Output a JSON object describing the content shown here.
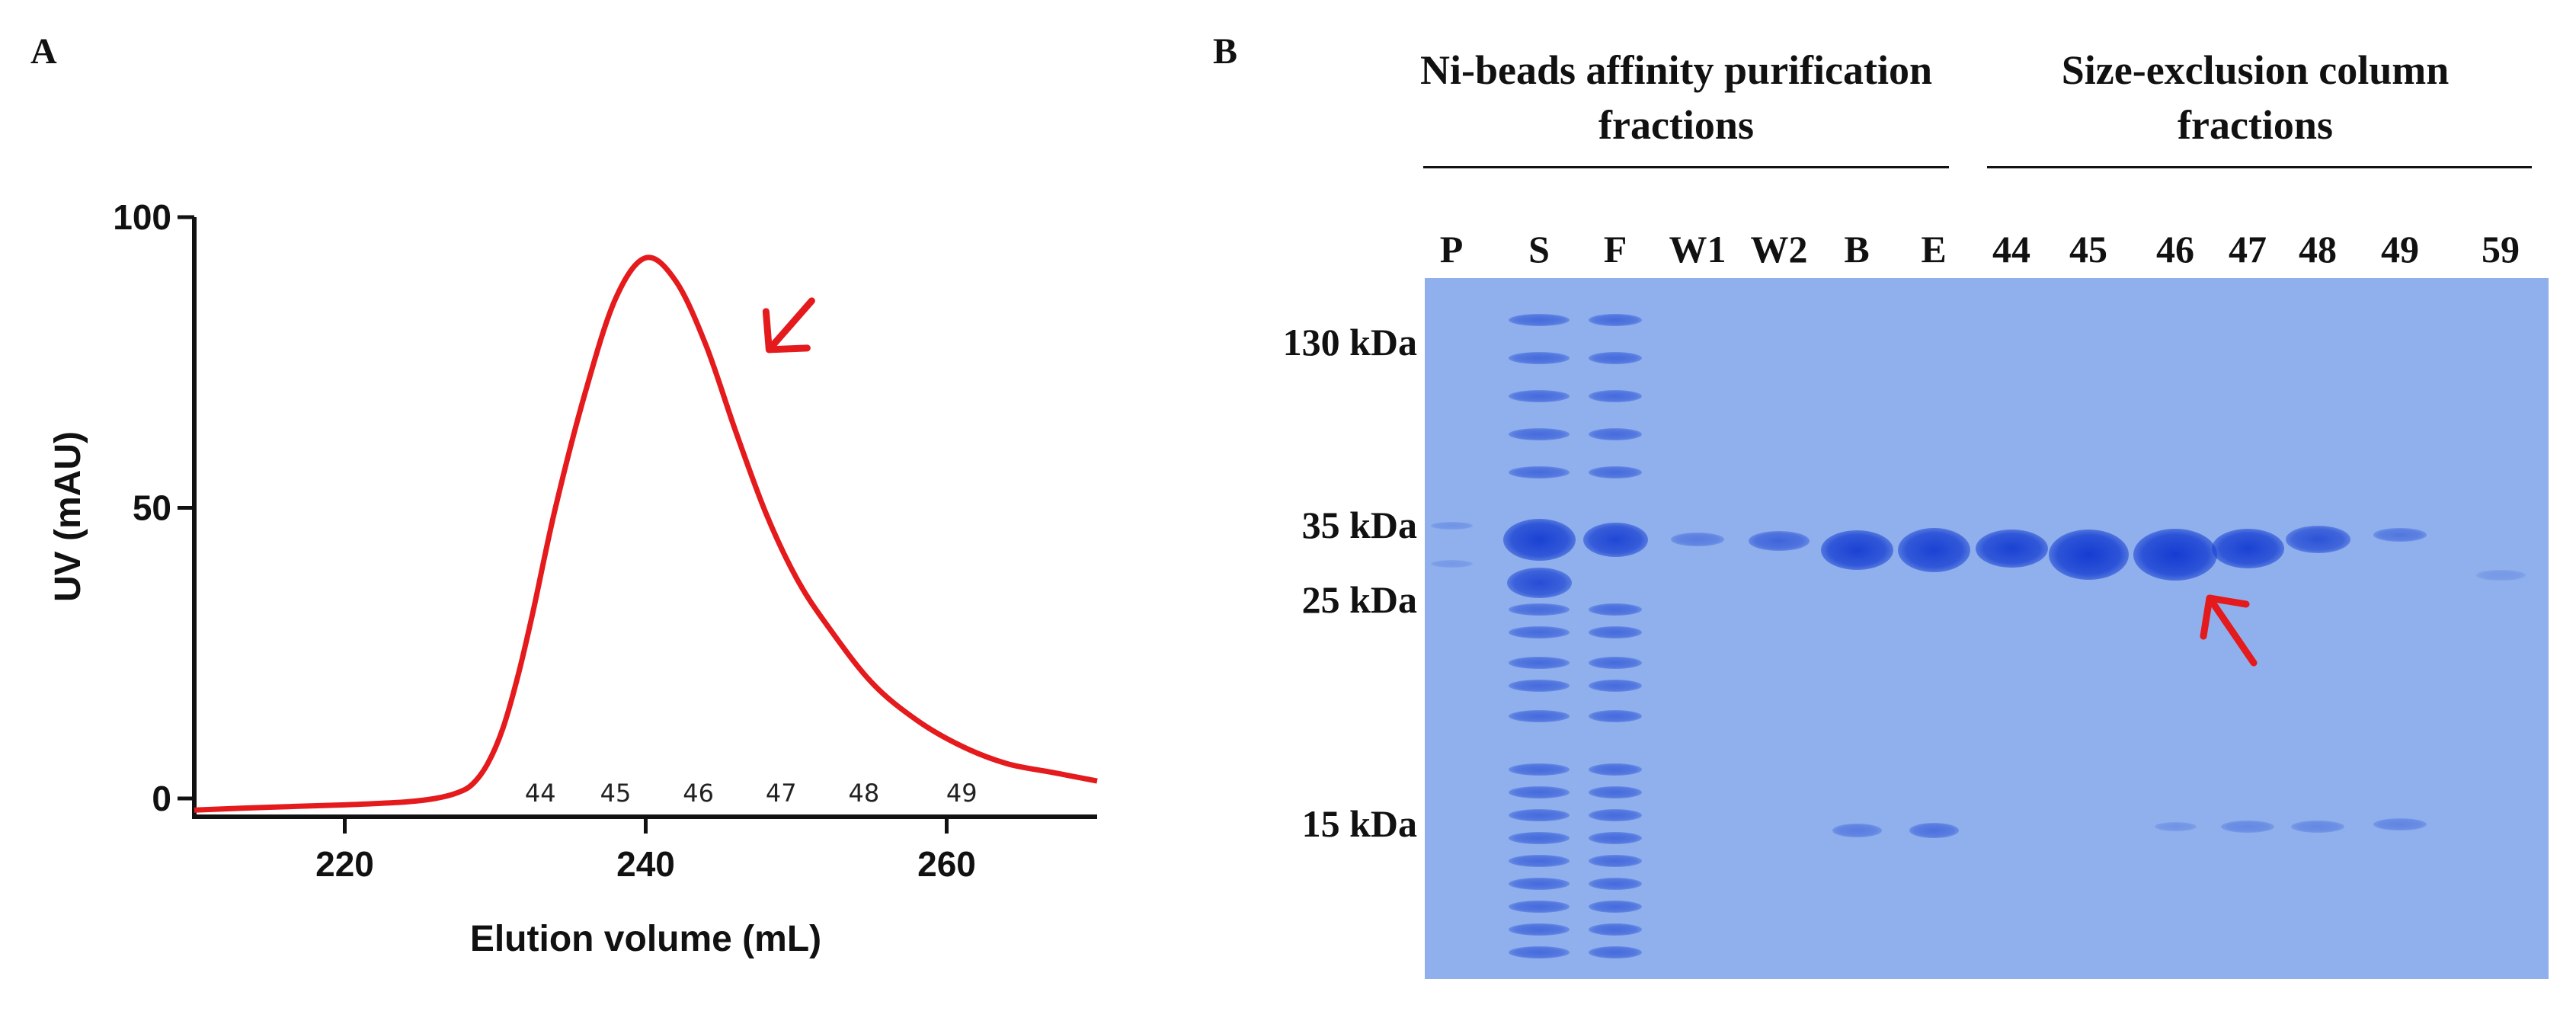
{
  "panel_a": {
    "letter": "A",
    "chart_data": {
      "type": "line",
      "xlabel": "Elution volume (mL)",
      "ylabel": "UV (mAU)",
      "xlim": [
        210,
        270
      ],
      "ylim": [
        0,
        100
      ],
      "x_ticks": [
        "220",
        "240",
        "260"
      ],
      "y_ticks": [
        "0",
        "50",
        "100"
      ],
      "series": [
        {
          "color": "#e41a1c",
          "x": [
            210,
            215,
            220,
            224,
            226,
            227.5,
            228.5,
            229.5,
            230.5,
            231.5,
            232.5,
            234,
            236,
            238,
            240,
            242,
            244,
            246,
            248,
            250,
            252,
            255,
            258,
            261,
            264,
            267,
            270
          ],
          "y": [
            -2,
            -1.5,
            -1.1,
            -0.6,
            0,
            1,
            2.5,
            6,
            12,
            21,
            32,
            50,
            70,
            86,
            93,
            89,
            78,
            63,
            49,
            38,
            30,
            20,
            13.5,
            9,
            6,
            4.5,
            3
          ]
        }
      ],
      "annotations": {
        "fractions": [
          {
            "label": "44",
            "x": 233
          },
          {
            "label": "45",
            "x": 238
          },
          {
            "label": "46",
            "x": 243.5
          },
          {
            "label": "47",
            "x": 249
          },
          {
            "label": "48",
            "x": 254.5
          },
          {
            "label": "49",
            "x": 261
          }
        ],
        "arrow_near": {
          "x": 248.5,
          "y": 78
        }
      }
    }
  },
  "panel_b": {
    "letter": "B",
    "groups": [
      {
        "title": [
          "Ni-beads affinity purification",
          "fractions"
        ]
      },
      {
        "title": [
          "Size-exclusion column",
          "fractions"
        ]
      }
    ],
    "lanes": [
      "P",
      "S",
      "F",
      "W1",
      "W2",
      "B",
      "E",
      "44",
      "45",
      "46",
      "47",
      "48",
      "49",
      "59"
    ],
    "markers": [
      "130 kDa",
      "35 kDa",
      "25 kDa",
      "15 kDa"
    ],
    "gel_color": "#8fb0ec",
    "band_color": "#1f4fd6",
    "arrow_color": "#e41a1c"
  }
}
